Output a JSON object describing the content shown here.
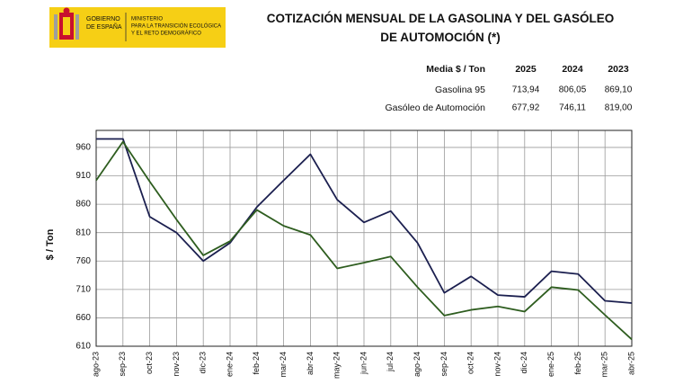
{
  "logo": {
    "government": [
      "GOBIERNO",
      "DE ESPAÑA"
    ],
    "ministry": [
      "MINISTERIO",
      "PARA LA TRANSICIÓN ECOLÓGICA",
      "Y EL RETO DEMOGRÁFICO"
    ]
  },
  "chart_data": {
    "type": "line",
    "title": "COTIZACIÓN MENSUAL DE LA GASOLINA Y DEL GASÓLEO DE AUTOMOCIÓN (*)",
    "table": {
      "header": [
        "Media $ / Ton",
        "2025",
        "2024",
        "2023"
      ],
      "rows": [
        [
          "713,94",
          "806,05",
          "869,10"
        ],
        [
          "677,92",
          "746,11",
          "819,00"
        ]
      ]
    },
    "y_label": "$ / Ton",
    "categories": [
      "ago-23",
      "sep-23",
      "oct-23",
      "nov-23",
      "dic-23",
      "ene-24",
      "feb-24",
      "mar-24",
      "abr-24",
      "may-24",
      "jun-24",
      "jul-24",
      "ago-24",
      "sep-24",
      "oct-24",
      "nov-24",
      "dic-24",
      "ene-25",
      "feb-25",
      "mar-25",
      "abr-25"
    ],
    "series": [
      {
        "name": "Gasolina 95",
        "color": "#1b1f4f",
        "values": [
          975,
          975,
          838,
          810,
          760,
          792,
          855,
          902,
          948,
          868,
          828,
          848,
          792,
          704,
          733,
          700,
          697,
          742,
          737,
          690,
          686
        ]
      },
      {
        "name": "Gasóleo de Automoción",
        "color": "#2e5d1f",
        "values": [
          902,
          970,
          900,
          833,
          770,
          795,
          850,
          822,
          806,
          747,
          757,
          768,
          714,
          664,
          674,
          680,
          671,
          714,
          709,
          665,
          622
        ]
      }
    ],
    "ylim": [
      610,
      990
    ],
    "yticks": [
      610,
      660,
      710,
      760,
      810,
      860,
      910,
      960
    ],
    "grid": true
  }
}
